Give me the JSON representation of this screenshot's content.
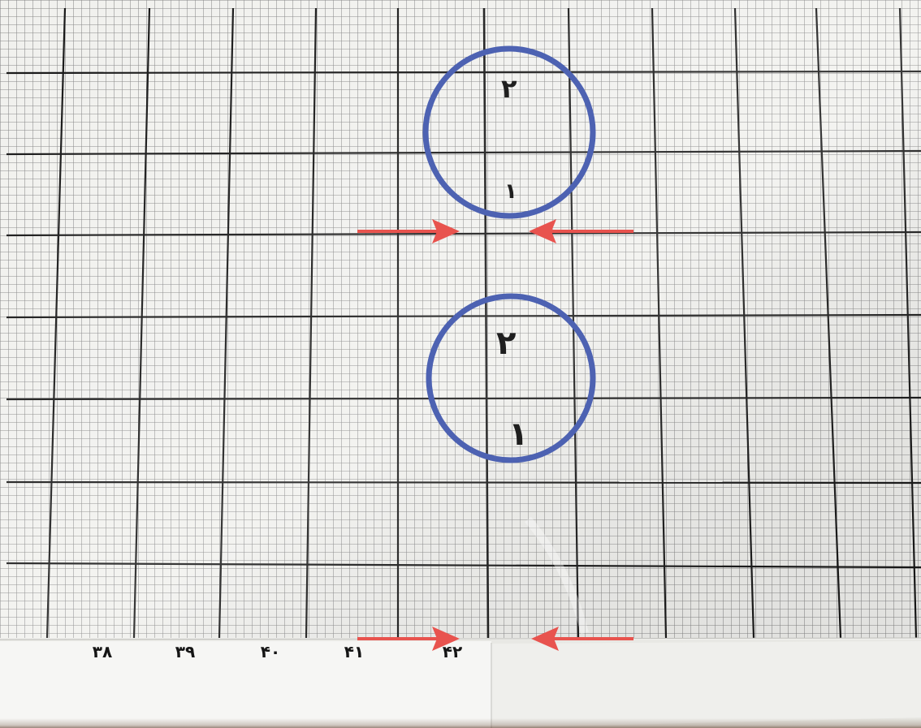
{
  "photo": {
    "ruler_numbers": [
      "۳۸",
      "۳۹",
      "۴۰",
      "۴۱",
      "۴۲"
    ],
    "circle_top_marks": [
      "۲",
      "۱"
    ],
    "circle_bottom_marks": [
      "۲",
      "۱"
    ],
    "colors": {
      "grid_major": "#1a1a1a",
      "grid_minor": "#7a7a7a",
      "circle": "#4d62b2",
      "arrow": "#e8534e",
      "paper": "#f1f1ee",
      "ruler_strip": "#f4f4f2"
    }
  }
}
